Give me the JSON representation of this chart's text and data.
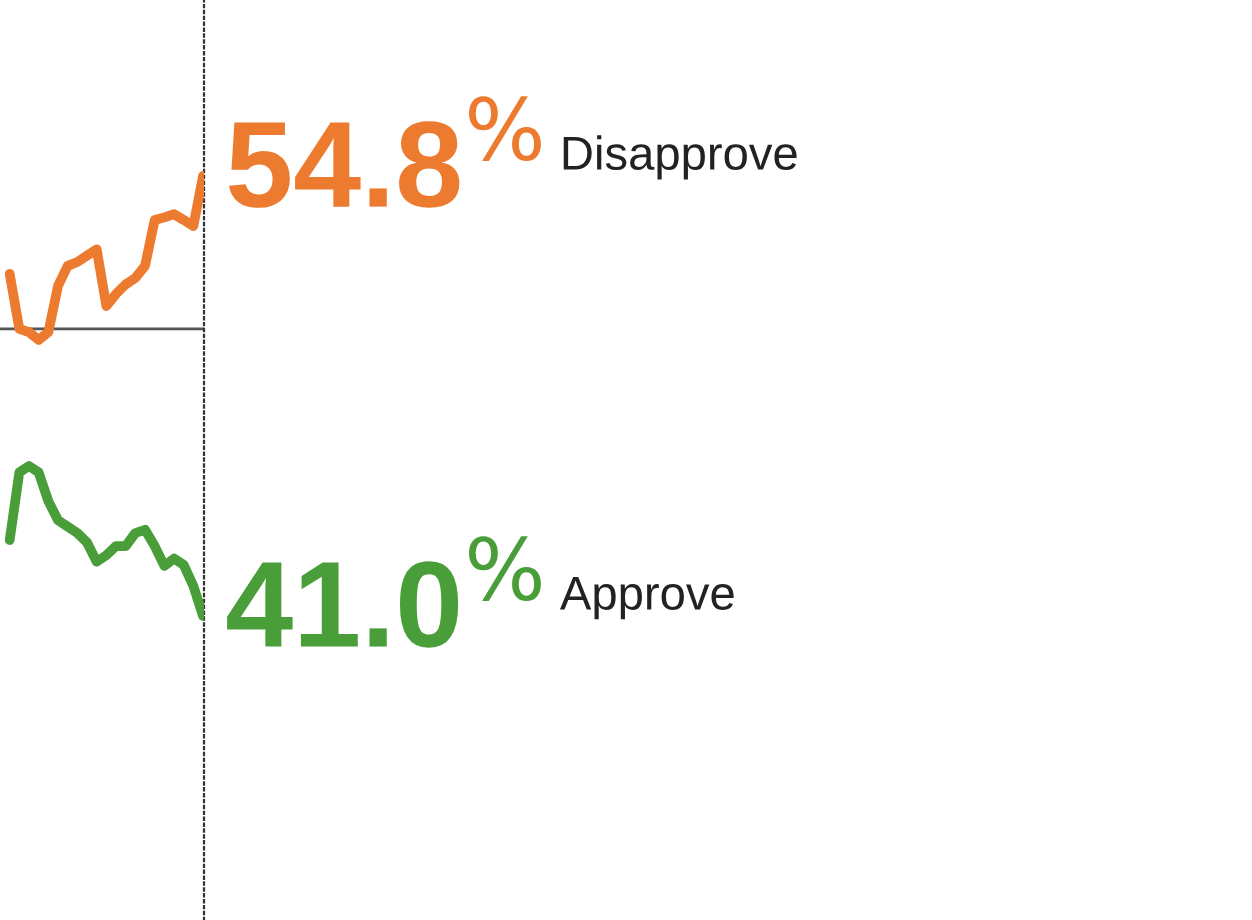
{
  "chart_data": {
    "type": "line",
    "legend": false,
    "ylim": [
      31.46,
      60.32
    ],
    "categories": [
      null,
      null,
      null,
      null,
      null,
      null,
      null,
      null,
      null,
      null,
      null,
      null,
      null,
      null,
      null,
      null,
      null,
      null,
      null,
      null,
      null
    ],
    "ref_lines": [
      {
        "axis": "y",
        "value": 50,
        "color": "#555555",
        "line_style": "solid"
      }
    ],
    "series": [
      {
        "name": "Disapprove",
        "color": "#ec7a2f",
        "values": [
          51.73,
          50.0,
          49.9,
          49.66,
          49.9,
          51.35,
          51.98,
          52.1,
          52.3,
          52.5,
          50.72,
          51.1,
          51.4,
          51.6,
          51.98,
          53.42,
          53.5,
          53.6,
          53.42,
          53.23,
          54.8
        ],
        "value_labels": [
          null,
          null,
          null,
          null,
          null,
          null,
          null,
          null,
          null,
          null,
          null,
          null,
          null,
          null,
          null,
          null,
          null,
          null,
          null,
          null,
          "54.8$^{%}$"
        ]
      },
      {
        "name": "Approve",
        "color": "#4a9e3a",
        "values": [
          43.38,
          45.5,
          45.7,
          45.5,
          44.6,
          44.0,
          43.8,
          43.6,
          43.3,
          42.7,
          42.9,
          43.19,
          43.19,
          43.6,
          43.7,
          43.19,
          42.57,
          42.8,
          42.6,
          41.94,
          41.0
        ],
        "value_labels": [
          null,
          null,
          null,
          null,
          null,
          null,
          null,
          null,
          null,
          null,
          null,
          null,
          null,
          null,
          null,
          null,
          null,
          null,
          null,
          null,
          "41.0$^{%}$"
        ]
      }
    ]
  }
}
